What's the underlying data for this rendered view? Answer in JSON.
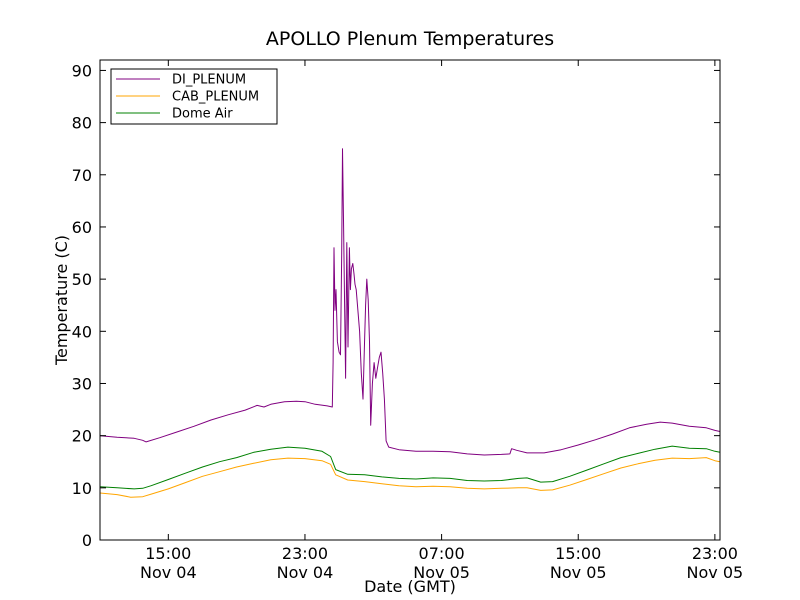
{
  "chart_data": {
    "type": "line",
    "title": "APOLLO Plenum Temperatures",
    "xlabel": "Date (GMT)",
    "ylabel": "Temperature (C)",
    "x_unit": "hours since Nov 04 00:00 GMT",
    "xlim": [
      11.0,
      47.3
    ],
    "ylim": [
      0,
      92
    ],
    "yticks": [
      0,
      10,
      20,
      30,
      40,
      50,
      60,
      70,
      80,
      90
    ],
    "xticks": [
      {
        "x": 15,
        "time": "15:00",
        "date": "Nov 04"
      },
      {
        "x": 23,
        "time": "23:00",
        "date": "Nov 04"
      },
      {
        "x": 31,
        "time": "07:00",
        "date": "Nov 05"
      },
      {
        "x": 39,
        "time": "15:00",
        "date": "Nov 05"
      },
      {
        "x": 47,
        "time": "23:00",
        "date": "Nov 05"
      }
    ],
    "legend_position": "top-left",
    "series": [
      {
        "name": "DI_PLENUM",
        "color": "#800080",
        "points": [
          [
            11.0,
            20.0
          ],
          [
            12.0,
            19.7
          ],
          [
            13.0,
            19.5
          ],
          [
            13.5,
            19.1
          ],
          [
            13.7,
            18.8
          ],
          [
            14.5,
            19.6
          ],
          [
            15.5,
            20.7
          ],
          [
            16.5,
            21.8
          ],
          [
            17.5,
            23.0
          ],
          [
            18.5,
            24.0
          ],
          [
            19.5,
            24.9
          ],
          [
            20.2,
            25.8
          ],
          [
            20.6,
            25.5
          ],
          [
            21.0,
            26.0
          ],
          [
            21.8,
            26.5
          ],
          [
            22.5,
            26.6
          ],
          [
            23.0,
            26.5
          ],
          [
            23.6,
            26.0
          ],
          [
            24.3,
            25.7
          ],
          [
            24.6,
            25.5
          ],
          [
            24.65,
            34.0
          ],
          [
            24.7,
            56.0
          ],
          [
            24.76,
            44.0
          ],
          [
            24.82,
            48.0
          ],
          [
            24.9,
            38.0
          ],
          [
            25.0,
            36.0
          ],
          [
            25.08,
            35.5
          ],
          [
            25.15,
            55.0
          ],
          [
            25.2,
            75.0
          ],
          [
            25.26,
            60.0
          ],
          [
            25.32,
            45.0
          ],
          [
            25.38,
            31.0
          ],
          [
            25.45,
            57.0
          ],
          [
            25.52,
            37.0
          ],
          [
            25.6,
            56.0
          ],
          [
            25.66,
            48.0
          ],
          [
            25.72,
            52.0
          ],
          [
            25.8,
            53.0
          ],
          [
            25.87,
            51.0
          ],
          [
            25.93,
            49.0
          ],
          [
            26.0,
            48.0
          ],
          [
            26.1,
            44.0
          ],
          [
            26.2,
            40.0
          ],
          [
            26.3,
            32.0
          ],
          [
            26.4,
            27.0
          ],
          [
            26.48,
            37.0
          ],
          [
            26.55,
            45.0
          ],
          [
            26.62,
            50.0
          ],
          [
            26.7,
            46.0
          ],
          [
            26.78,
            38.0
          ],
          [
            26.85,
            22.0
          ],
          [
            26.95,
            30.0
          ],
          [
            27.05,
            34.0
          ],
          [
            27.15,
            31.0
          ],
          [
            27.25,
            33.0
          ],
          [
            27.35,
            35.0
          ],
          [
            27.45,
            36.0
          ],
          [
            27.55,
            32.0
          ],
          [
            27.65,
            27.0
          ],
          [
            27.75,
            19.0
          ],
          [
            27.9,
            17.8
          ],
          [
            28.5,
            17.3
          ],
          [
            29.5,
            17.0
          ],
          [
            30.5,
            17.0
          ],
          [
            31.5,
            16.9
          ],
          [
            32.5,
            16.5
          ],
          [
            33.5,
            16.3
          ],
          [
            34.5,
            16.4
          ],
          [
            35.0,
            16.5
          ],
          [
            35.1,
            17.5
          ],
          [
            35.4,
            17.2
          ],
          [
            36.0,
            16.7
          ],
          [
            37.0,
            16.7
          ],
          [
            38.0,
            17.3
          ],
          [
            39.0,
            18.2
          ],
          [
            40.0,
            19.2
          ],
          [
            41.0,
            20.3
          ],
          [
            42.0,
            21.5
          ],
          [
            43.0,
            22.2
          ],
          [
            43.8,
            22.6
          ],
          [
            44.5,
            22.4
          ],
          [
            45.5,
            21.8
          ],
          [
            46.5,
            21.5
          ],
          [
            47.0,
            21.0
          ],
          [
            47.3,
            20.8
          ]
        ]
      },
      {
        "name": "CAB_PLENUM",
        "color": "#FFA500",
        "points": [
          [
            11.0,
            9.0
          ],
          [
            12.0,
            8.7
          ],
          [
            12.8,
            8.2
          ],
          [
            13.5,
            8.3
          ],
          [
            14.0,
            8.8
          ],
          [
            15.0,
            9.8
          ],
          [
            16.0,
            11.0
          ],
          [
            17.0,
            12.2
          ],
          [
            18.0,
            13.1
          ],
          [
            19.0,
            14.0
          ],
          [
            20.0,
            14.7
          ],
          [
            21.0,
            15.4
          ],
          [
            22.0,
            15.7
          ],
          [
            23.0,
            15.6
          ],
          [
            24.0,
            15.2
          ],
          [
            24.5,
            14.5
          ],
          [
            24.8,
            12.5
          ],
          [
            25.5,
            11.5
          ],
          [
            26.5,
            11.2
          ],
          [
            27.5,
            10.8
          ],
          [
            28.5,
            10.4
          ],
          [
            29.5,
            10.2
          ],
          [
            30.5,
            10.3
          ],
          [
            31.5,
            10.2
          ],
          [
            32.5,
            9.9
          ],
          [
            33.5,
            9.8
          ],
          [
            34.5,
            9.9
          ],
          [
            35.5,
            10.0
          ],
          [
            36.0,
            10.0
          ],
          [
            36.8,
            9.5
          ],
          [
            37.5,
            9.6
          ],
          [
            38.5,
            10.5
          ],
          [
            39.5,
            11.6
          ],
          [
            40.5,
            12.7
          ],
          [
            41.5,
            13.8
          ],
          [
            42.5,
            14.6
          ],
          [
            43.5,
            15.3
          ],
          [
            44.5,
            15.7
          ],
          [
            45.5,
            15.6
          ],
          [
            46.5,
            15.8
          ],
          [
            47.0,
            15.2
          ],
          [
            47.3,
            15.0
          ]
        ]
      },
      {
        "name": "Dome Air",
        "color": "#008000",
        "points": [
          [
            11.0,
            10.2
          ],
          [
            12.0,
            10.0
          ],
          [
            13.0,
            9.8
          ],
          [
            13.5,
            9.9
          ],
          [
            14.0,
            10.4
          ],
          [
            15.0,
            11.6
          ],
          [
            16.0,
            12.8
          ],
          [
            17.0,
            14.0
          ],
          [
            18.0,
            15.0
          ],
          [
            19.0,
            15.8
          ],
          [
            20.0,
            16.8
          ],
          [
            21.0,
            17.4
          ],
          [
            22.0,
            17.8
          ],
          [
            23.0,
            17.6
          ],
          [
            24.0,
            17.0
          ],
          [
            24.5,
            16.0
          ],
          [
            24.8,
            13.5
          ],
          [
            25.5,
            12.6
          ],
          [
            26.5,
            12.5
          ],
          [
            27.5,
            12.1
          ],
          [
            28.5,
            11.8
          ],
          [
            29.5,
            11.7
          ],
          [
            30.5,
            11.9
          ],
          [
            31.5,
            11.8
          ],
          [
            32.5,
            11.4
          ],
          [
            33.5,
            11.3
          ],
          [
            34.5,
            11.4
          ],
          [
            35.5,
            11.8
          ],
          [
            36.0,
            11.9
          ],
          [
            36.8,
            11.1
          ],
          [
            37.5,
            11.2
          ],
          [
            38.5,
            12.2
          ],
          [
            39.5,
            13.4
          ],
          [
            40.5,
            14.6
          ],
          [
            41.5,
            15.8
          ],
          [
            42.5,
            16.6
          ],
          [
            43.5,
            17.4
          ],
          [
            44.5,
            18.0
          ],
          [
            45.5,
            17.6
          ],
          [
            46.5,
            17.5
          ],
          [
            47.0,
            17.0
          ],
          [
            47.3,
            16.8
          ]
        ]
      }
    ]
  }
}
